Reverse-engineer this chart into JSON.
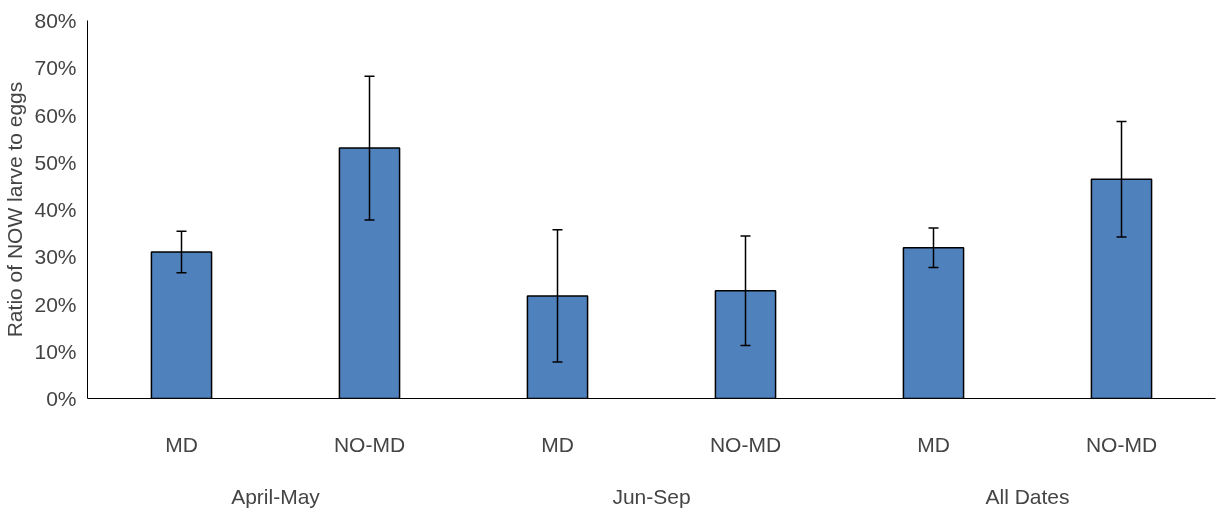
{
  "chart_data": {
    "type": "bar",
    "ylabel": "Ratio of NOW larve to eggs",
    "categories": [
      "MD",
      "NO-MD",
      "MD",
      "NO-MD",
      "MD",
      "NO-MD"
    ],
    "values": [
      31,
      53,
      21.7,
      22.8,
      31.9,
      46.4
    ],
    "errors": [
      4.4,
      15.2,
      14,
      11.6,
      4.2,
      12.2
    ],
    "color": "#4f81bd",
    "ylim": [
      0,
      80
    ],
    "yticks": [
      {
        "value": 0,
        "label": "0%"
      },
      {
        "value": 10,
        "label": "10%"
      },
      {
        "value": 20,
        "label": "20%"
      },
      {
        "value": 30,
        "label": "30%"
      },
      {
        "value": 40,
        "label": "40%"
      },
      {
        "value": 50,
        "label": "50%"
      },
      {
        "value": 60,
        "label": "60%"
      },
      {
        "value": 70,
        "label": "70%"
      },
      {
        "value": 80,
        "label": "80%"
      }
    ],
    "annotations": [
      "April-May",
      "Jun-Sep",
      "All Dates"
    ],
    "grid": false
  }
}
